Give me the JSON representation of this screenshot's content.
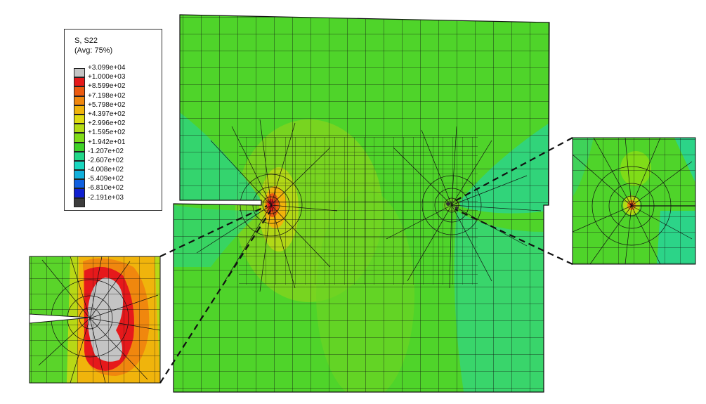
{
  "legend": {
    "title": "S, S22",
    "subtitle": "(Avg: 75%)",
    "labels": [
      "+3.099e+04",
      "+1.000e+03",
      "+8.599e+02",
      "+7.198e+02",
      "+5.798e+02",
      "+4.397e+02",
      "+2.996e+02",
      "+1.595e+02",
      "+1.942e+01",
      "-1.207e+02",
      "-2.607e+02",
      "-4.008e+02",
      "-5.409e+02",
      "-6.810e+02",
      "-2.191e+03"
    ],
    "colors": [
      "#c4c4c4",
      "#e6191b",
      "#ec5a10",
      "#f0870e",
      "#f0b40c",
      "#e0dc10",
      "#b4dc14",
      "#80dc18",
      "#3ed228",
      "#22d88a",
      "#1ad8c0",
      "#12b0dc",
      "#1060e0",
      "#1020d0",
      "#3c3c3c"
    ]
  },
  "palette": {
    "mesh_green": "#4fd42a",
    "band_yellow_green": "#8bd41e",
    "cyan_green": "#29d38a",
    "mesh_line": "#111111",
    "hot_red": "#e6191b",
    "hot_orange": "#f0870e",
    "hot_gray": "#c4c4c4"
  }
}
